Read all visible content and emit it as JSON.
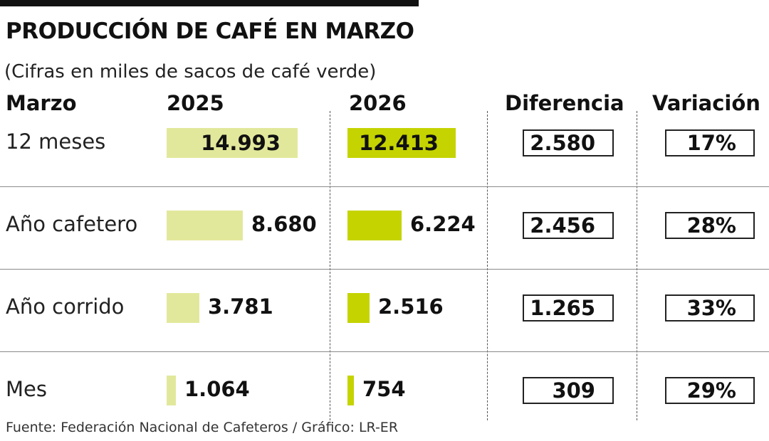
{
  "chart_data": {
    "type": "table",
    "title": "PRODUCCIÓN DE CAFÉ EN MARZO",
    "subtitle": "(Cifras en miles de sacos de café verde)",
    "columns": [
      "Marzo",
      "2025",
      "2026",
      "Diferencia",
      "Variación"
    ],
    "rows": [
      {
        "label": "12 meses",
        "v2025": 14993,
        "v2025_text": "14.993",
        "v2026": 12413,
        "v2026_text": "12.413",
        "diferencia": "2.580",
        "variacion": "17%"
      },
      {
        "label": "Año cafetero",
        "v2025": 8680,
        "v2025_text": "8.680",
        "v2026": 6224,
        "v2026_text": "6.224",
        "diferencia": "2.456",
        "variacion": "28%"
      },
      {
        "label": "Año corrido",
        "v2025": 3781,
        "v2025_text": "3.781",
        "v2026": 2516,
        "v2026_text": "2.516",
        "diferencia": "1.265",
        "variacion": "33%"
      },
      {
        "label": "Mes",
        "v2025": 1064,
        "v2025_text": "1.064",
        "v2026": 754,
        "v2026_text": "754",
        "diferencia": "309",
        "variacion": "29%"
      }
    ],
    "colors": {
      "bar_2025": "#e2e89b",
      "bar_2026": "#c5d300"
    },
    "source": "Fuente: Federación Nacional de Cafeteros / Gráfico: LR-ER"
  }
}
